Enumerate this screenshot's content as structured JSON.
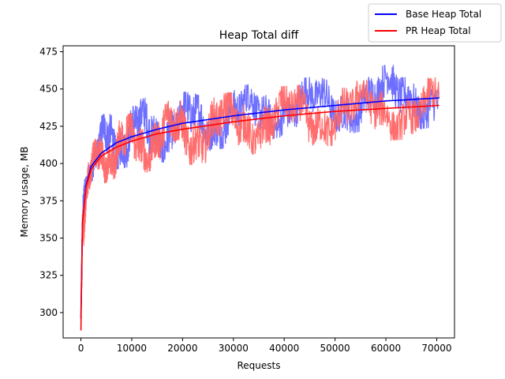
{
  "chart_data": {
    "type": "line",
    "title": "Heap Total diff",
    "xlabel": "Requests",
    "ylabel": "Memory usage, MB",
    "xlim": [
      -3500,
      73500
    ],
    "ylim": [
      283,
      479
    ],
    "xticks": [
      0,
      10000,
      20000,
      30000,
      40000,
      50000,
      60000,
      70000
    ],
    "xtick_labels": [
      "0",
      "10000",
      "20000",
      "30000",
      "40000",
      "50000",
      "60000",
      "70000"
    ],
    "yticks": [
      300,
      325,
      350,
      375,
      400,
      425,
      450,
      475
    ],
    "ytick_labels": [
      "300",
      "325",
      "350",
      "375",
      "400",
      "425",
      "450",
      "475"
    ],
    "grid": false,
    "legend_position": "top-right",
    "series": [
      {
        "name": "Base Heap Total",
        "color": "#0000ff",
        "trend": {
          "x": [
            0,
            300,
            1000,
            2000,
            4000,
            7000,
            10000,
            15000,
            20000,
            30000,
            40000,
            50000,
            60000,
            70500
          ],
          "y": [
            296,
            360,
            385,
            398,
            407,
            414,
            418,
            423,
            427,
            432,
            436,
            439,
            442,
            444
          ]
        },
        "raw_band": {
          "color": "#6666ff",
          "x": [
            0,
            300,
            1000,
            2000,
            4000,
            7000,
            10000,
            15000,
            20000,
            30000,
            40000,
            50000,
            60000,
            70500
          ],
          "low": [
            290,
            330,
            372,
            388,
            392,
            396,
            398,
            400,
            404,
            412,
            418,
            420,
            422,
            424
          ],
          "high": [
            305,
            375,
            400,
            415,
            432,
            438,
            442,
            446,
            448,
            452,
            456,
            460,
            466,
            468
          ]
        }
      },
      {
        "name": "PR Heap Total",
        "color": "#ff0000",
        "trend": {
          "x": [
            0,
            300,
            1000,
            2000,
            4000,
            7000,
            10000,
            15000,
            20000,
            30000,
            40000,
            50000,
            60000,
            70500
          ],
          "y": [
            288,
            360,
            384,
            396,
            405,
            411,
            415,
            420,
            423,
            428,
            432,
            435,
            437,
            439
          ]
        },
        "raw_band": {
          "color": "#ff6666",
          "x": [
            0,
            300,
            1000,
            2000,
            4000,
            7000,
            10000,
            15000,
            20000,
            30000,
            40000,
            50000,
            60000,
            70500
          ],
          "low": [
            285,
            325,
            368,
            378,
            386,
            390,
            392,
            396,
            398,
            404,
            410,
            412,
            415,
            418
          ],
          "high": [
            300,
            385,
            404,
            412,
            422,
            430,
            434,
            440,
            444,
            448,
            452,
            455,
            456,
            458
          ]
        }
      }
    ]
  }
}
